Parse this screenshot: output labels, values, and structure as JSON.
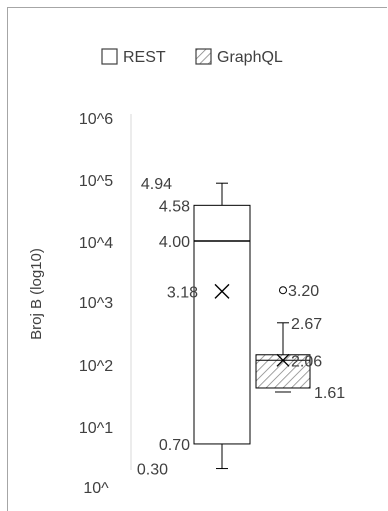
{
  "chart_data": {
    "type": "box",
    "yscale": "log10",
    "ylabel": "Broj B (log10)",
    "ylim": [
      0,
      6
    ],
    "yticks": [
      "10^",
      "10^1",
      "10^2",
      "10^3",
      "10^4",
      "10^5",
      "10^6"
    ],
    "legend": {
      "position": "top",
      "entries": [
        "REST",
        "GraphQL"
      ]
    },
    "series": [
      {
        "name": "REST",
        "fill": "none",
        "min": 0.3,
        "q1": 0.7,
        "median": 4.0,
        "q3": 4.58,
        "max": 4.94,
        "mean": 3.18,
        "outliers": [],
        "labels": [
          "4.94",
          "4.58",
          "4.00",
          "3.18",
          "0.70",
          "0.30"
        ]
      },
      {
        "name": "GraphQL",
        "fill": "hatched",
        "min": 1.61,
        "q1": 1.61,
        "median": 2.06,
        "q3": 2.06,
        "max": 2.67,
        "mean": 2.06,
        "outliers": [
          3.2
        ],
        "labels": [
          "3.20",
          "2.67",
          "2.06",
          "1.61"
        ]
      }
    ]
  },
  "colors": {
    "axis": "#d9d9d9",
    "stroke": "#000000",
    "text": "#404040",
    "frame": "#a6a6a6"
  }
}
